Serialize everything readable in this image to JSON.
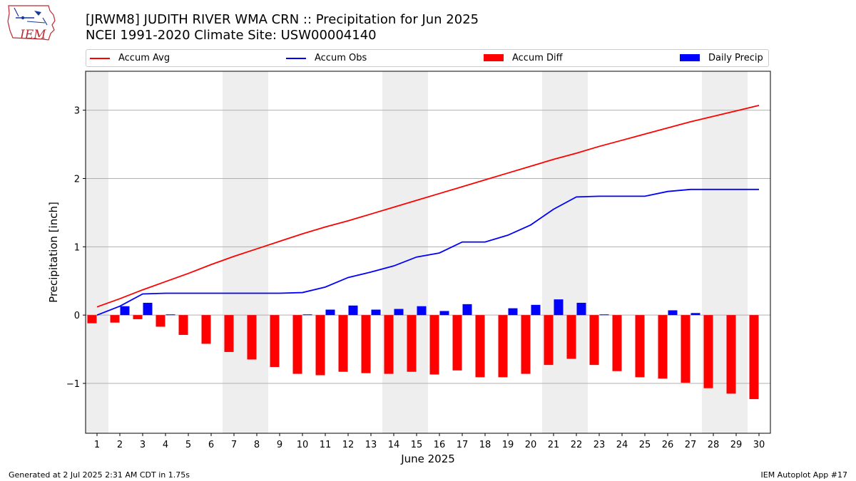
{
  "title_line1": "[JRWM8] JUDITH RIVER WMA CRN :: Precipitation for Jun 2025",
  "title_line2": "NCEI 1991-2020 Climate Site: USW00004140",
  "logo_text": "IEM",
  "footer_left": "Generated at 2 Jul 2025 2:31 AM CDT in 1.75s",
  "footer_right": "IEM Autoplot App #17",
  "chart_data": {
    "type": "bar",
    "xlabel": "June 2025",
    "ylabel": "Precipitation [inch]",
    "x": [
      1,
      2,
      3,
      4,
      5,
      6,
      7,
      8,
      9,
      10,
      11,
      12,
      13,
      14,
      15,
      16,
      17,
      18,
      19,
      20,
      21,
      22,
      23,
      24,
      25,
      26,
      27,
      28,
      29,
      30
    ],
    "xlim": [
      0.5,
      30.5
    ],
    "ylim": [
      -1.73,
      3.57
    ],
    "yticks": [
      -1,
      0,
      1,
      2,
      3
    ],
    "ytick_labels": [
      "−1",
      "0",
      "1",
      "2",
      "3"
    ],
    "grid": "horizontal",
    "legend_position": "top",
    "weekend_bands": [
      [
        0.5,
        1.5
      ],
      [
        6.5,
        8.5
      ],
      [
        13.5,
        15.5
      ],
      [
        20.5,
        22.5
      ],
      [
        27.5,
        29.5
      ]
    ],
    "series": [
      {
        "name": "Accum Avg",
        "kind": "line",
        "color": "#ff0000",
        "values": [
          0.12,
          0.24,
          0.37,
          0.49,
          0.61,
          0.74,
          0.86,
          0.97,
          1.08,
          1.19,
          1.29,
          1.38,
          1.48,
          1.58,
          1.68,
          1.78,
          1.88,
          1.98,
          2.08,
          2.18,
          2.28,
          2.37,
          2.47,
          2.56,
          2.65,
          2.74,
          2.83,
          2.91,
          2.99,
          3.07
        ]
      },
      {
        "name": "Accum Obs",
        "kind": "line",
        "color": "#0000ff",
        "values": [
          0.0,
          0.13,
          0.31,
          0.32,
          0.32,
          0.32,
          0.32,
          0.32,
          0.32,
          0.33,
          0.41,
          0.55,
          0.63,
          0.72,
          0.85,
          0.91,
          1.07,
          1.07,
          1.17,
          1.32,
          1.55,
          1.73,
          1.74,
          1.74,
          1.74,
          1.81,
          1.84,
          1.84,
          1.84,
          1.84
        ]
      },
      {
        "name": "Accum Diff",
        "kind": "bar",
        "color": "#ff0000",
        "values": [
          -0.12,
          -0.11,
          -0.06,
          -0.17,
          -0.29,
          -0.42,
          -0.54,
          -0.65,
          -0.76,
          -0.86,
          -0.88,
          -0.83,
          -0.85,
          -0.86,
          -0.83,
          -0.87,
          -0.81,
          -0.91,
          -0.91,
          -0.86,
          -0.73,
          -0.64,
          -0.73,
          -0.82,
          -0.91,
          -0.93,
          -0.99,
          -1.07,
          -1.15,
          -1.23
        ]
      },
      {
        "name": "Daily Precip",
        "kind": "bar",
        "color": "#0000ff",
        "values": [
          0.0,
          0.13,
          0.18,
          0.01,
          0.0,
          0.0,
          0.0,
          0.0,
          0.0,
          0.01,
          0.08,
          0.14,
          0.08,
          0.09,
          0.13,
          0.06,
          0.16,
          0.0,
          0.1,
          0.15,
          0.23,
          0.18,
          0.01,
          0.0,
          0.0,
          0.07,
          0.03,
          0.0,
          0.0,
          0.0
        ]
      }
    ]
  }
}
